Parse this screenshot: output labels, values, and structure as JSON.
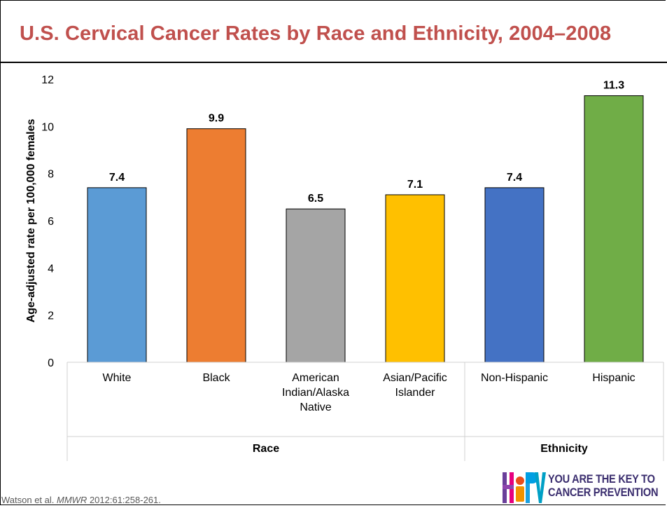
{
  "slide": {
    "title": "U.S. Cervical Cancer Rates by Race and Ethnicity, 2004–2008",
    "title_color": "#C0504D",
    "citation": {
      "authors": "Watson et al. ",
      "journal": "MMWR",
      "details": " 2012:61:258-261."
    },
    "logo": {
      "name": "hpv-logo",
      "tagline_line1": "YOU ARE THE KEY TO",
      "tagline_line2": "CANCER PREVENTION"
    }
  },
  "chart_data": {
    "type": "bar",
    "title": "",
    "ylabel": "Age-adjusted rate per 100,000 females",
    "ylim": [
      0,
      12
    ],
    "yticks": [
      0,
      2,
      4,
      6,
      8,
      10,
      12
    ],
    "grid": false,
    "legend": "none",
    "categories": [
      "White",
      "Black",
      "American Indian/Alaska Native",
      "Asian/Pacific Islander",
      "Non-Hispanic",
      "Hispanic"
    ],
    "category_label_lines": [
      [
        "White"
      ],
      [
        "Black"
      ],
      [
        "American",
        "Indian/Alaska",
        "Native"
      ],
      [
        "Asian/Pacific",
        "Islander"
      ],
      [
        "Non-Hispanic"
      ],
      [
        "Hispanic"
      ]
    ],
    "values": [
      7.4,
      9.9,
      6.5,
      7.1,
      7.4,
      11.3
    ],
    "data_labels": [
      "7.4",
      "9.9",
      "6.5",
      "7.1",
      "7.4",
      "11.3"
    ],
    "colors": [
      "#5B9BD5",
      "#ED7D31",
      "#A5A5A5",
      "#FFC000",
      "#4472C4",
      "#70AD47"
    ],
    "groups": [
      {
        "label": "Race",
        "categories": [
          0,
          1,
          2,
          3
        ]
      },
      {
        "label": "Ethnicity",
        "categories": [
          4,
          5
        ]
      }
    ]
  }
}
